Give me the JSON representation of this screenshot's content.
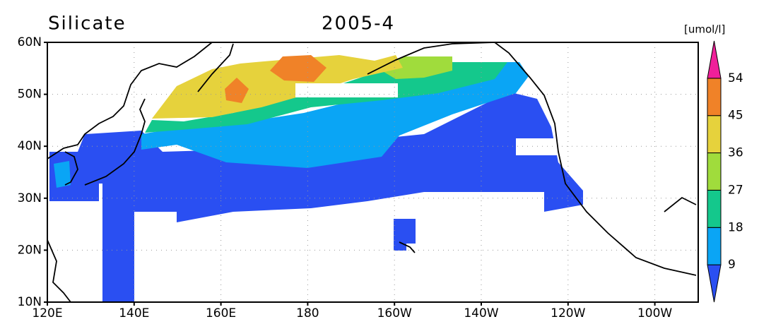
{
  "title": "Silicate",
  "date": "2005-4",
  "unit": "[umol/l]",
  "lat_labels": [
    "60N",
    "50N",
    "40N",
    "30N",
    "20N",
    "10N"
  ],
  "lon_labels": [
    "120E",
    "140E",
    "160E",
    "180",
    "160W",
    "140W",
    "120W",
    "100W"
  ],
  "colorbar": {
    "levels": [
      9,
      18,
      27,
      36,
      45,
      54
    ],
    "colors": [
      "#2a4ff2",
      "#0aa5f5",
      "#14c88c",
      "#a0dc3c",
      "#e6d23c",
      "#f08228",
      "#f0209a"
    ]
  }
}
